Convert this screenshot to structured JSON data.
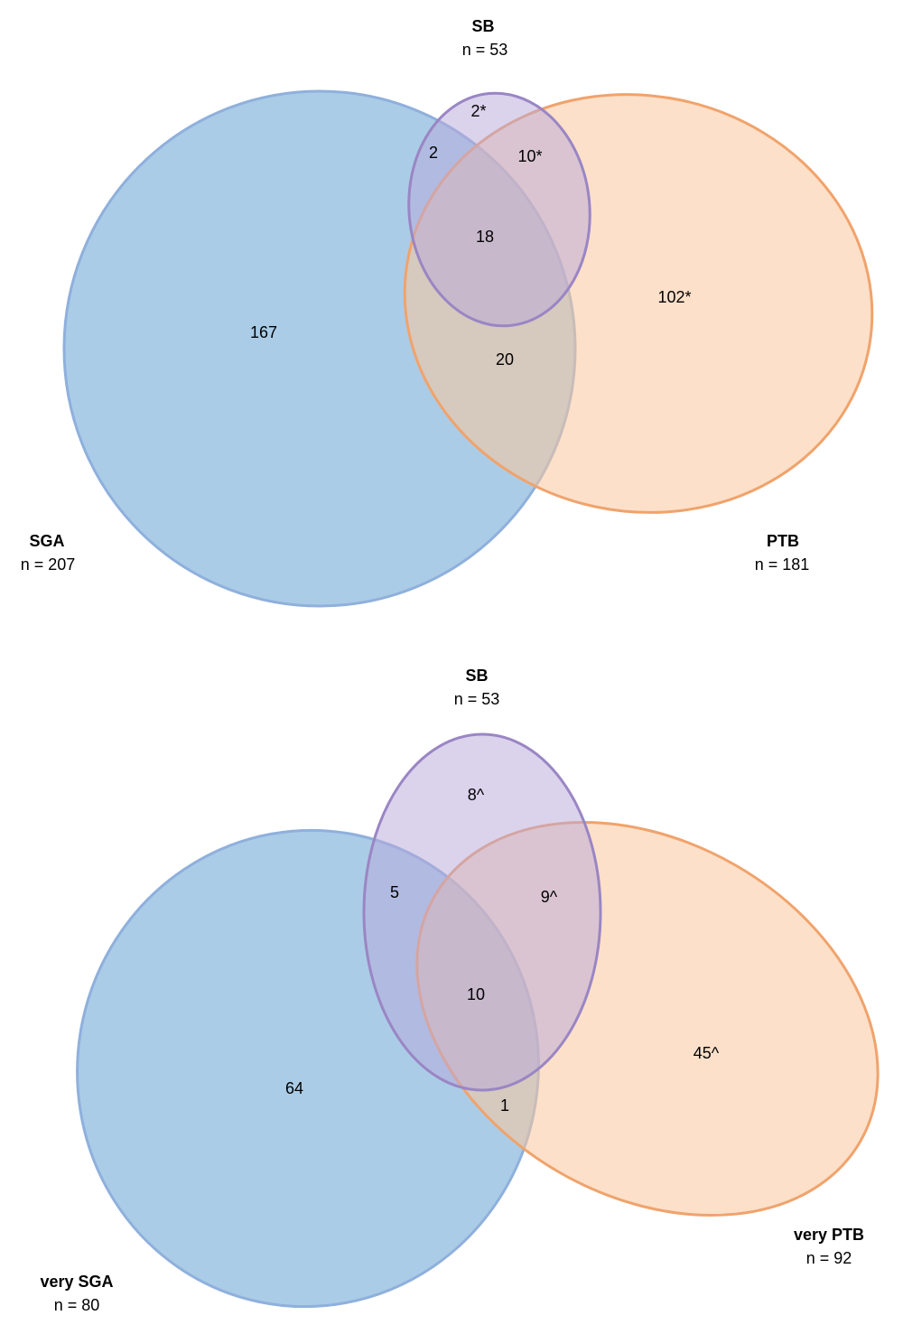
{
  "diagrams": [
    {
      "sets": [
        {
          "name": "SB",
          "count": "n = 53"
        },
        {
          "name": "SGA",
          "count": "n = 207"
        },
        {
          "name": "PTB",
          "count": "n = 181"
        }
      ],
      "regions": [
        "2*",
        "2",
        "10*",
        "18",
        "102*",
        "167",
        "20"
      ]
    },
    {
      "sets": [
        {
          "name": "SB",
          "count": "n = 53"
        },
        {
          "name": "very SGA",
          "count": "n = 80"
        },
        {
          "name": "very PTB",
          "count": "n = 92"
        }
      ],
      "regions": [
        "8^",
        "5",
        "9^",
        "10",
        "45^",
        "64",
        "1"
      ]
    }
  ]
}
